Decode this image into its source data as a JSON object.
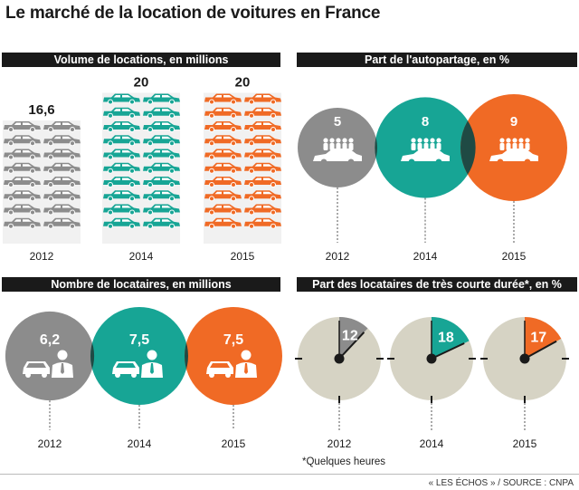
{
  "title": "Le marché de la location de voitures en France",
  "colors": {
    "c2012": "#8c8c8c",
    "c2014": "#17a595",
    "c2015": "#f06a25",
    "clock": "#d6d3c4",
    "dark": "#1a1a1a"
  },
  "footnote": "*Quelques heures",
  "source": "« LES ÉCHOS » / SOURCE : CNPA",
  "chart_data": [
    {
      "type": "bar",
      "title": "Volume de locations, en millions",
      "categories": [
        "2012",
        "2014",
        "2015"
      ],
      "values": [
        16.6,
        20,
        20
      ],
      "value_labels": [
        "16,6",
        "20",
        "20"
      ]
    },
    {
      "type": "bubble",
      "title": "Part de l'autopartage, en %",
      "categories": [
        "2012",
        "2014",
        "2015"
      ],
      "values": [
        5,
        8,
        9
      ],
      "value_labels": [
        "5",
        "8",
        "9"
      ]
    },
    {
      "type": "bubble",
      "title": "Nombre de locataires, en millions",
      "categories": [
        "2012",
        "2014",
        "2015"
      ],
      "values": [
        6.2,
        7.5,
        7.5
      ],
      "value_labels": [
        "6,2",
        "7,5",
        "7,5"
      ]
    },
    {
      "type": "pie",
      "title": "Part des locataires de très courte durée*, en %",
      "categories": [
        "2012",
        "2014",
        "2015"
      ],
      "values": [
        12,
        18,
        17
      ],
      "value_labels": [
        "12",
        "18",
        "17"
      ]
    }
  ]
}
